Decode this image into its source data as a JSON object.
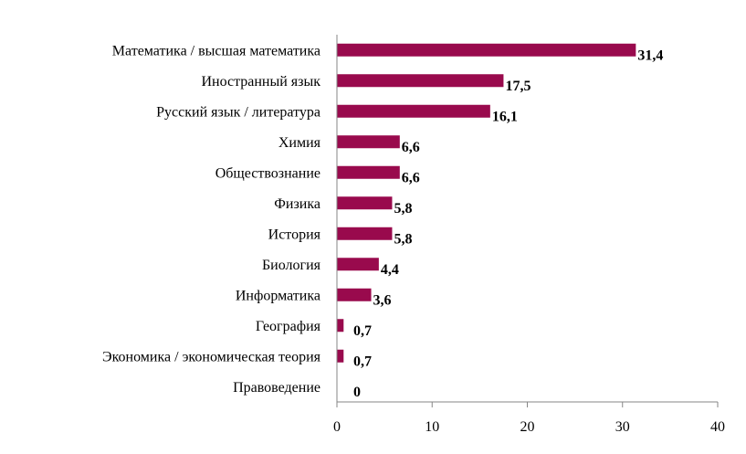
{
  "chart_data": {
    "type": "bar",
    "orientation": "horizontal",
    "categories": [
      "Математика / высшая  математика",
      "Иностранный язык",
      "Русский язык / литература",
      "Химия",
      "Обществознание",
      "Физика",
      "История",
      "Биология",
      "Информатика",
      "География",
      "Экономика / экономическая теория",
      "Правоведение"
    ],
    "values": [
      31.4,
      17.5,
      16.1,
      6.6,
      6.6,
      5.8,
      5.8,
      4.4,
      3.6,
      0.7,
      0.7,
      0
    ],
    "value_labels": [
      "31,4",
      "17,5",
      "16,1",
      "6,6",
      "6,6",
      "5,8",
      "5,8",
      "4,4",
      "3,6",
      "0,7",
      "0,7",
      "0"
    ],
    "xlim": [
      0,
      40
    ],
    "xticks": [
      0,
      10,
      20,
      30,
      40
    ],
    "xtick_labels": [
      "0",
      "10",
      "20",
      "30",
      "40"
    ],
    "title": "",
    "xlabel": "",
    "ylabel": "",
    "grid": false,
    "legend": "none",
    "bar_color": "#990a4d"
  }
}
